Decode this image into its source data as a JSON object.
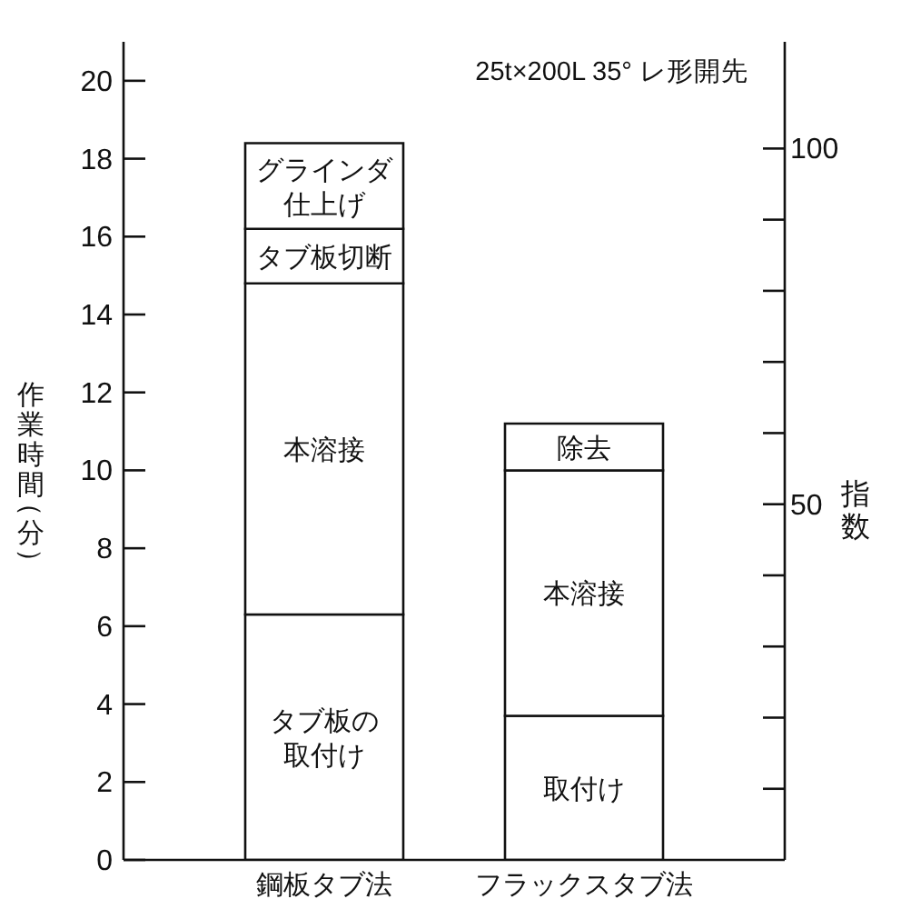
{
  "chart_data": {
    "type": "bar",
    "stacked": true,
    "categories": [
      "鋼板タブ法",
      "フラックスタブ法"
    ],
    "series": [
      {
        "name": "タブ板の取付け",
        "color": "#ffffff",
        "values": [
          6.3,
          null
        ]
      },
      {
        "name": "取付け",
        "color": "#ffffff",
        "values": [
          null,
          3.7
        ]
      },
      {
        "name": "本溶接",
        "color": "#ffffff",
        "values": [
          8.5,
          6.3
        ]
      },
      {
        "name": "タブ板切断",
        "color": "#ffffff",
        "values": [
          1.4,
          null
        ]
      },
      {
        "name": "除去",
        "color": "#ffffff",
        "values": [
          null,
          1.2
        ]
      },
      {
        "name": "グラインダ仕上げ",
        "color": "#ffffff",
        "values": [
          2.2,
          null
        ]
      }
    ],
    "ylabel": "作業時間（分）",
    "y2label": "指数",
    "ylim": [
      0,
      21
    ],
    "yticks": [
      0,
      2,
      4,
      6,
      8,
      10,
      12,
      14,
      16,
      18,
      20
    ],
    "y2lim": [
      0,
      115
    ],
    "y2ticks": [
      {
        "value": 10,
        "label": null
      },
      {
        "value": 20,
        "label": null
      },
      {
        "value": 30,
        "label": null
      },
      {
        "value": 40,
        "label": null
      },
      50,
      {
        "value": 60,
        "label": null
      },
      {
        "value": 70,
        "label": null
      },
      {
        "value": 80,
        "label": null
      },
      {
        "value": 90,
        "label": null
      },
      100
    ],
    "annotations": [
      "25t×200L 35° レ形開先"
    ]
  }
}
